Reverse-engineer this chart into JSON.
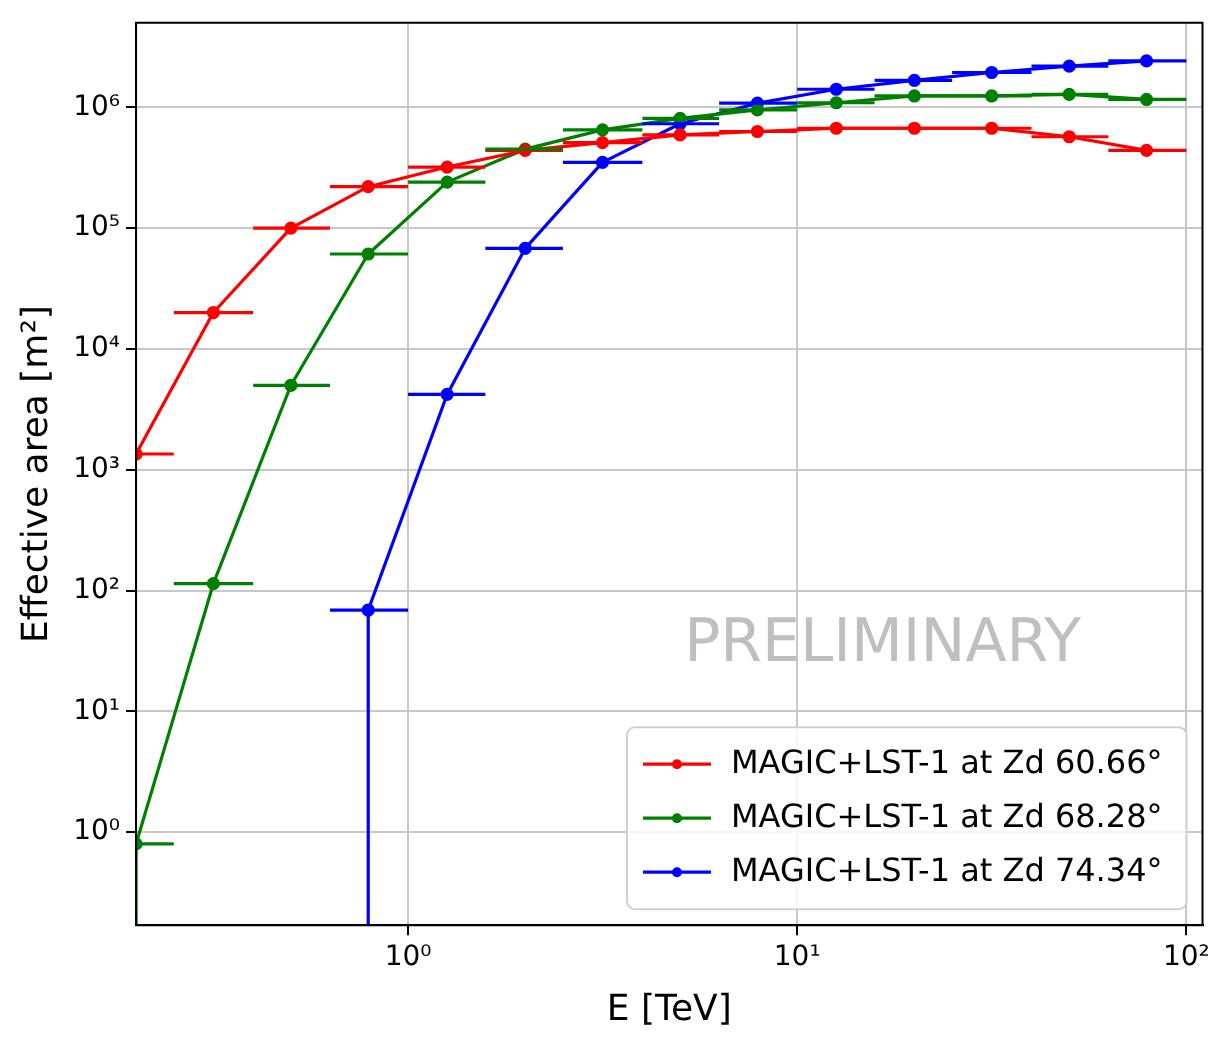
{
  "chart_data": {
    "type": "line",
    "xlabel": "E [TeV]",
    "ylabel": "Effective area [m²]",
    "log": "xy",
    "grid": true,
    "marker": "circle",
    "line_style": "solid",
    "legend": "bottom right",
    "xlim": [
      0.2,
      110
    ],
    "ylim": [
      0.17,
      5000000
    ],
    "xticks": [
      {
        "value": 1,
        "label": "10⁰"
      },
      {
        "value": 10,
        "label": "10¹"
      },
      {
        "value": 100,
        "label": "10²"
      }
    ],
    "yticks": [
      {
        "value": 1,
        "label": "10⁰"
      },
      {
        "value": 10,
        "label": "10¹"
      },
      {
        "value": 100,
        "label": "10²"
      },
      {
        "value": 1000,
        "label": "10³"
      },
      {
        "value": 10000,
        "label": "10⁴"
      },
      {
        "value": 100000,
        "label": "10⁵"
      },
      {
        "value": 1000000,
        "label": "10⁶"
      }
    ],
    "annotations": [
      "PRELIMINARY"
    ],
    "x": [
      0.2,
      0.316,
      0.5,
      0.79,
      1.26,
      2,
      3.16,
      5,
      7.9,
      12.6,
      20,
      31.6,
      50,
      79
    ],
    "series": [
      {
        "name": "MAGIC+LST-1 at Zd 60.66°",
        "color": "#ff0000",
        "values": [
          1350,
          20000,
          100000,
          220000,
          320000,
          440000,
          510000,
          590000,
          630000,
          670000,
          670000,
          670000,
          570000,
          440000
        ],
        "xerrors": [
          [
            0.2,
            0.25
          ],
          [
            0.25,
            0.4
          ],
          [
            0.4,
            0.63
          ],
          [
            0.63,
            1
          ],
          [
            1,
            1.58
          ],
          [
            1.58,
            2.5
          ],
          [
            2.5,
            4
          ],
          [
            4,
            6.3
          ],
          [
            6.3,
            10
          ],
          [
            10,
            15.8
          ],
          [
            15.8,
            25
          ],
          [
            25,
            40
          ],
          [
            40,
            63
          ],
          [
            63,
            100
          ]
        ]
      },
      {
        "name": "MAGIC+LST-1 at Zd 68.28°",
        "color": "#008000",
        "values": [
          0.8,
          114,
          5000,
          61000,
          240000,
          450000,
          650000,
          810000,
          950000,
          1090000,
          1240000,
          1240000,
          1280000,
          1160000
        ],
        "errors": [
          [
            0.17,
            0.8
          ],
          null,
          null,
          null,
          null,
          null,
          null,
          null,
          null,
          null,
          null,
          null,
          null,
          null
        ],
        "xerrors": [
          [
            0.2,
            0.25
          ],
          [
            0.25,
            0.4
          ],
          [
            0.4,
            0.63
          ],
          [
            0.63,
            1
          ],
          [
            1,
            1.58
          ],
          [
            1.58,
            2.5
          ],
          [
            2.5,
            4
          ],
          [
            4,
            6.3
          ],
          [
            6.3,
            10
          ],
          [
            10,
            15.8
          ],
          [
            15.8,
            25
          ],
          [
            25,
            40
          ],
          [
            40,
            63
          ],
          [
            63,
            100
          ]
        ]
      },
      {
        "name": "MAGIC+LST-1 at Zd 74.34°",
        "color": "#0000ff",
        "values": [
          null,
          null,
          null,
          69,
          4200,
          68000,
          350000,
          730000,
          1080000,
          1410000,
          1670000,
          1940000,
          2190000,
          2420000
        ],
        "errors": [
          null,
          null,
          null,
          [
            0.17,
            69
          ],
          null,
          null,
          null,
          null,
          null,
          null,
          null,
          null,
          null,
          null
        ],
        "xerrors": [
          null,
          null,
          null,
          [
            0.63,
            1
          ],
          [
            1,
            1.58
          ],
          [
            1.58,
            2.5
          ],
          [
            2.5,
            4
          ],
          [
            4,
            6.3
          ],
          [
            6.3,
            10
          ],
          [
            10,
            15.8
          ],
          [
            15.8,
            25
          ],
          [
            25,
            40
          ],
          [
            40,
            63
          ],
          [
            63,
            100
          ]
        ]
      }
    ]
  }
}
